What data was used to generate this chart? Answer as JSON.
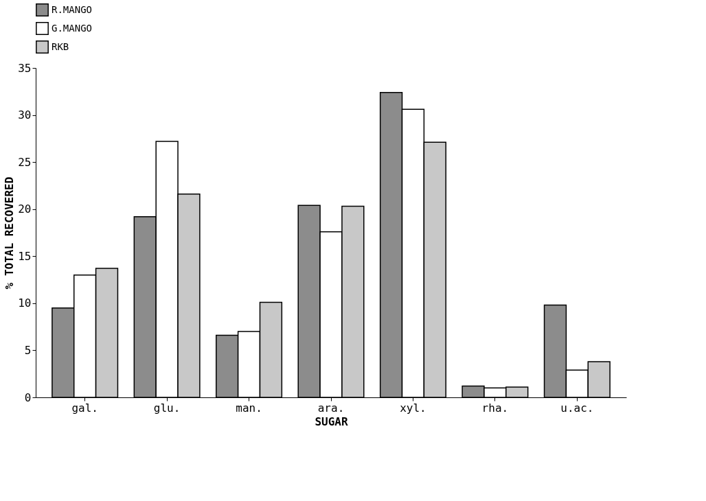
{
  "chart_data": {
    "type": "bar",
    "xlabel": "SUGAR",
    "ylabel": "% TOTAL RECOVERED",
    "categories": [
      "gal.",
      "glu.",
      "man.",
      "ara.",
      "xyl.",
      "rha.",
      "u.ac."
    ],
    "series": [
      {
        "name": "R.MANGO",
        "color": "#8c8c8c",
        "values": [
          9.5,
          19.2,
          6.6,
          20.4,
          32.4,
          1.2,
          9.8
        ]
      },
      {
        "name": "G.MANGO",
        "color": "#ffffff",
        "values": [
          13.0,
          27.2,
          7.0,
          17.6,
          30.6,
          1.0,
          2.9
        ]
      },
      {
        "name": "RKB",
        "color": "#c8c8c8",
        "values": [
          13.7,
          21.6,
          10.1,
          20.3,
          27.1,
          1.1,
          3.8
        ]
      }
    ],
    "ylim": [
      0,
      35
    ],
    "yticks": [
      0,
      5,
      10,
      15,
      20,
      25,
      30,
      35
    ],
    "grid": false,
    "legend": "top"
  }
}
